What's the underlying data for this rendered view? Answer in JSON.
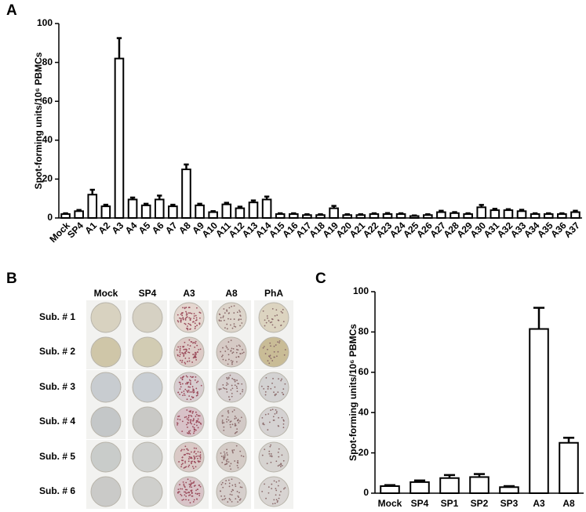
{
  "chart_data": [
    {
      "type": "bar",
      "panel_label": "A",
      "y_label": "Spot-forming units/10⁶ PBMCs",
      "categories": [
        "Mock",
        "SP4",
        "A1",
        "A2",
        "A3",
        "A4",
        "A5",
        "A6",
        "A7",
        "A8",
        "A9",
        "A10",
        "A11",
        "A12",
        "A13",
        "A14",
        "A15",
        "A16",
        "A17",
        "A18",
        "A19",
        "A20",
        "A21",
        "A22",
        "A23",
        "A24",
        "A25",
        "A26",
        "A27",
        "A28",
        "A29",
        "A30",
        "A31",
        "A32",
        "A33",
        "A34",
        "A35",
        "A36",
        "A37"
      ],
      "values": [
        2,
        3.5,
        12,
        6,
        82,
        9.5,
        6.5,
        9.5,
        6,
        25,
        6.5,
        3,
        7,
        5,
        8,
        9.5,
        2,
        2,
        1.5,
        1.5,
        5,
        1.5,
        1.5,
        2,
        2,
        2,
        1,
        1.5,
        3,
        2.5,
        2,
        5.5,
        4,
        4,
        3.5,
        2,
        2,
        2,
        3
      ],
      "errors": [
        0.4,
        0.6,
        2.5,
        0.8,
        10.5,
        1,
        0.8,
        2,
        0.8,
        2.5,
        0.8,
        0.5,
        0.8,
        0.8,
        1,
        1.5,
        0.4,
        0.4,
        0.4,
        0.4,
        1.2,
        0.4,
        0.4,
        0.4,
        0.5,
        0.4,
        0.3,
        0.4,
        0.7,
        0.5,
        0.4,
        1.2,
        0.7,
        0.5,
        0.7,
        0.4,
        0.4,
        0.4,
        0.7
      ],
      "bar_color": "#ffffff",
      "edge_color": "#000000",
      "ylim": [
        0,
        100
      ],
      "yticks": [
        0,
        20,
        40,
        60,
        80,
        100
      ]
    },
    {
      "type": "bar",
      "panel_label": "C",
      "y_label": "Spot-forming units/10⁶ PBMCs",
      "categories": [
        "Mock",
        "SP4",
        "SP1",
        "SP2",
        "SP3",
        "A3",
        "A8"
      ],
      "values": [
        3.5,
        5.5,
        7.5,
        8,
        3,
        81.5,
        25
      ],
      "errors": [
        0.5,
        0.8,
        1.5,
        1.5,
        0.5,
        10.5,
        2.5
      ],
      "bar_color": "#ffffff",
      "edge_color": "#000000",
      "ylim": [
        0,
        100
      ],
      "yticks": [
        0,
        20,
        40,
        60,
        80,
        100
      ]
    }
  ],
  "panel_b": {
    "label": "B",
    "columns": [
      "Mock",
      "SP4",
      "A3",
      "A8",
      "PhA"
    ],
    "rows": [
      "Sub. # 1",
      "Sub. # 2",
      "Sub. # 3",
      "Sub. # 4",
      "Sub. # 5",
      "Sub. # 6"
    ]
  }
}
